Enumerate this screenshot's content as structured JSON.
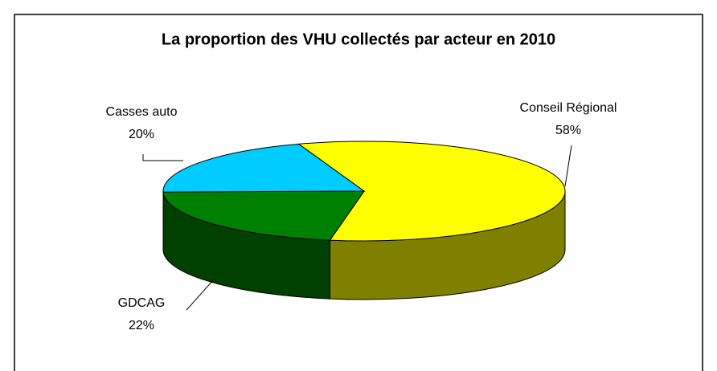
{
  "chart_data": {
    "type": "pie",
    "title": "La proportion des VHU collectés par acteur en 2010",
    "categories": [
      "Conseil Régional",
      "GDCAG",
      "Casses auto"
    ],
    "values": [
      58,
      22,
      20
    ],
    "value_labels": [
      "58%",
      "22%",
      "20%"
    ],
    "colors": [
      "#ffff00",
      "#008000",
      "#00ccff"
    ]
  }
}
